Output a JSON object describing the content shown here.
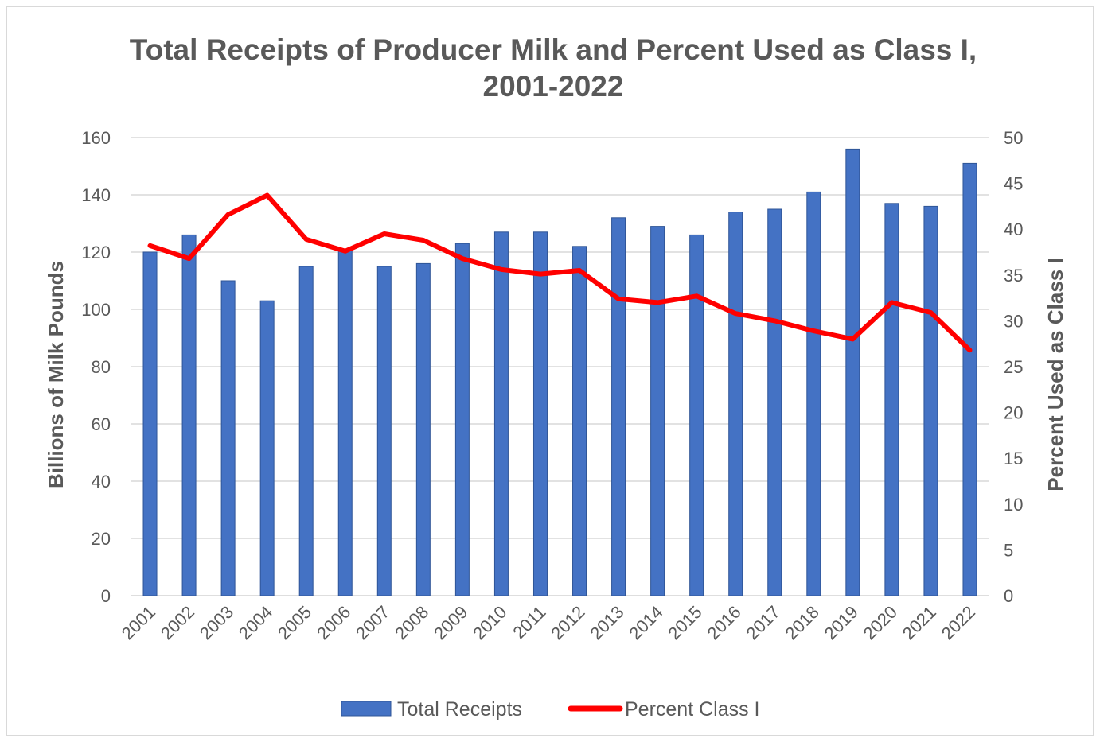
{
  "chart_data": {
    "type": "bar",
    "title_line1": "Total Receipts of Producer Milk and Percent Used as Class I,",
    "title_line2": "2001-2022",
    "ylabel": "Billions of Milk Pounds",
    "y2label": "Percent Used as Class I",
    "ylim": [
      0,
      160
    ],
    "y2lim": [
      0,
      50
    ],
    "yticks": [
      "0",
      "20",
      "40",
      "60",
      "80",
      "100",
      "120",
      "140",
      "160"
    ],
    "y2ticks": [
      "0",
      "5",
      "10",
      "15",
      "20",
      "25",
      "30",
      "35",
      "40",
      "45",
      "50"
    ],
    "categories": [
      "2001",
      "2002",
      "2003",
      "2004",
      "2005",
      "2006",
      "2007",
      "2008",
      "2009",
      "2010",
      "2011",
      "2012",
      "2013",
      "2014",
      "2015",
      "2016",
      "2017",
      "2018",
      "2019",
      "2020",
      "2021",
      "2022"
    ],
    "series": [
      {
        "name": "Total Receipts",
        "type": "bar",
        "axis": "left",
        "color": "#4472c4",
        "values": [
          120,
          126,
          110,
          103,
          115,
          121,
          115,
          116,
          123,
          127,
          127,
          122,
          132,
          129,
          126,
          134,
          135,
          141,
          156,
          137,
          136,
          151
        ]
      },
      {
        "name": "Percent Class I",
        "type": "line",
        "axis": "right",
        "color": "#ff0000",
        "values": [
          38.2,
          36.8,
          41.6,
          43.7,
          38.9,
          37.6,
          39.5,
          38.8,
          36.8,
          35.6,
          35.1,
          35.5,
          32.4,
          32.0,
          32.7,
          30.8,
          30.0,
          28.9,
          28.0,
          32.0,
          30.9,
          26.8
        ]
      }
    ],
    "legend": {
      "position": "bottom",
      "entries": [
        "Total Receipts",
        "Percent Class I"
      ]
    },
    "grid": true
  }
}
